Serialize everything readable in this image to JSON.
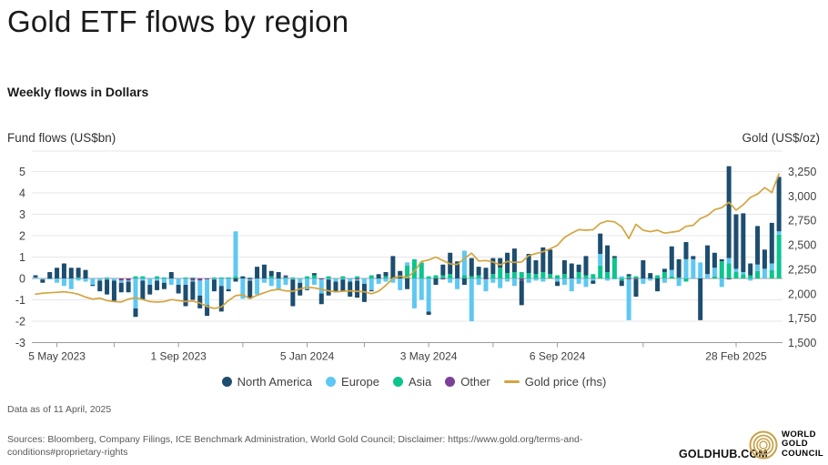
{
  "page": {
    "title": "Gold ETF flows by region",
    "subtitle": "Weekly flows in Dollars"
  },
  "chart_data": {
    "type": "bar+line",
    "left_axis": {
      "label": "Fund flows (US$bn)",
      "ticks": [
        "5",
        "4",
        "3",
        "2",
        "1",
        "0",
        "-1",
        "-2",
        "-3"
      ],
      "tick_values": [
        5,
        4,
        3,
        2,
        1,
        0,
        -1,
        -2,
        -3
      ],
      "range": [
        -3,
        5
      ],
      "grid": true
    },
    "right_axis": {
      "label": "Gold (US$/oz)",
      "ticks": [
        "3,250",
        "3,000",
        "2,750",
        "2,500",
        "2,250",
        "2,000",
        "1,750",
        "1,500"
      ],
      "tick_values": [
        3250,
        3000,
        2750,
        2500,
        2250,
        2000,
        1750,
        1500
      ],
      "range": [
        1500,
        3250
      ]
    },
    "x_axis": {
      "labels": [
        "5 May 2023",
        "1 Sep 2023",
        "5 Jan 2024",
        "3 May 2024",
        "6 Sep 2024",
        "28 Feb 2025"
      ],
      "label_indices": [
        3,
        20,
        38,
        55,
        73,
        98
      ],
      "minor_tick_indices": [
        3,
        11,
        20,
        29,
        38,
        46,
        55,
        64,
        73,
        85,
        98
      ]
    },
    "series_names": [
      "North America",
      "Europe",
      "Asia",
      "Other"
    ],
    "colors": {
      "north_america": "#1d4d6f",
      "europe": "#5ec8f2",
      "asia": "#0cc48e",
      "other": "#7d4098",
      "gold_line": "#d4a43f",
      "grid": "#e7e7e7",
      "axis": "#9b9b9b",
      "tick_text": "#404040"
    },
    "weeks_start": "mid-April 2023",
    "weeks_end": "11 April 2025",
    "weeks": [
      [
        0.1,
        0.05,
        0,
        0
      ],
      [
        -0.15,
        -0.05,
        0,
        0
      ],
      [
        0.3,
        -0.05,
        0,
        0
      ],
      [
        0.5,
        -0.2,
        0,
        0
      ],
      [
        0.7,
        -0.35,
        0,
        0
      ],
      [
        0.5,
        -0.5,
        0,
        0
      ],
      [
        0.45,
        -0.1,
        0.05,
        0
      ],
      [
        0.4,
        -0.15,
        0,
        0
      ],
      [
        -0.05,
        -0.3,
        0,
        0
      ],
      [
        -0.5,
        -0.1,
        0,
        0
      ],
      [
        -0.7,
        -0.05,
        0.05,
        0
      ],
      [
        -0.95,
        -0.1,
        0,
        0
      ],
      [
        -0.45,
        -0.1,
        0,
        -0.1
      ],
      [
        -0.5,
        -0.05,
        0,
        -0.1
      ],
      [
        -0.4,
        -1.4,
        0.1,
        0
      ],
      [
        -0.9,
        -0.1,
        0.1,
        0
      ],
      [
        -0.45,
        -0.3,
        0,
        0
      ],
      [
        -0.45,
        -0.1,
        0.1,
        0
      ],
      [
        -0.3,
        -0.2,
        0.05,
        0
      ],
      [
        0.3,
        -0.3,
        0,
        0
      ],
      [
        -0.4,
        -0.3,
        0,
        0
      ],
      [
        -1.0,
        -0.3,
        0.05,
        0
      ],
      [
        -0.85,
        -0.05,
        0.05,
        -0.1
      ],
      [
        -0.6,
        -0.7,
        0,
        -0.1
      ],
      [
        -0.5,
        -1.2,
        0,
        -0.05
      ],
      [
        -0.55,
        -0.05,
        0.05,
        0
      ],
      [
        -1.2,
        -0.35,
        0.05,
        0
      ],
      [
        -0.1,
        -0.5,
        0.05,
        0
      ],
      [
        -0.15,
        2.1,
        0.1,
        0
      ],
      [
        0.1,
        -0.95,
        0,
        0
      ],
      [
        -0.85,
        -0.05,
        0.05,
        -0.05
      ],
      [
        0.55,
        -0.75,
        0,
        0
      ],
      [
        0.65,
        -0.2,
        0,
        0
      ],
      [
        0.25,
        -0.35,
        0.1,
        0
      ],
      [
        0.3,
        -0.5,
        0,
        0
      ],
      [
        0.05,
        -0.3,
        0.05,
        0.05
      ],
      [
        -1.25,
        -0.05,
        0.05,
        0
      ],
      [
        -0.6,
        -0.2,
        0,
        0
      ],
      [
        -0.05,
        -0.5,
        0.1,
        0
      ],
      [
        0.1,
        -0.3,
        0.15,
        0
      ],
      [
        -0.5,
        -0.65,
        0,
        -0.05
      ],
      [
        -0.75,
        -0.05,
        0.1,
        0
      ],
      [
        -0.5,
        -0.15,
        0,
        0
      ],
      [
        -0.55,
        -0.05,
        0.1,
        0
      ],
      [
        -0.7,
        -0.15,
        0,
        0
      ],
      [
        -0.8,
        -0.05,
        0.1,
        -0.05
      ],
      [
        -0.85,
        -0.25,
        0,
        0
      ],
      [
        -0.05,
        -0.55,
        0.15,
        0
      ],
      [
        0.2,
        -0.25,
        0,
        0
      ],
      [
        0.2,
        -0.15,
        0.1,
        0
      ],
      [
        1.05,
        -0.2,
        0,
        0
      ],
      [
        0.35,
        -0.55,
        0,
        0
      ],
      [
        -0.5,
        0.15,
        0.6,
        0
      ],
      [
        0,
        -1.4,
        0.9,
        0
      ],
      [
        0,
        -1.0,
        0.75,
        0
      ],
      [
        -0.15,
        -1.55,
        0.1,
        0
      ],
      [
        -0.3,
        0,
        0.15,
        0
      ],
      [
        0.5,
        0,
        0.15,
        -0.05
      ],
      [
        1.0,
        -0.2,
        0.2,
        0
      ],
      [
        0.8,
        -0.5,
        0,
        0
      ],
      [
        -0.3,
        1.15,
        0.15,
        0
      ],
      [
        0.85,
        -2.0,
        0.1,
        0
      ],
      [
        0.4,
        -0.3,
        0.15,
        0
      ],
      [
        0.5,
        -0.55,
        0,
        -0.05
      ],
      [
        0.75,
        -0.2,
        0.2,
        0
      ],
      [
        0.45,
        -0.45,
        0.5,
        0
      ],
      [
        0.95,
        -0.15,
        0.25,
        0
      ],
      [
        1.1,
        -0.35,
        0.3,
        0
      ],
      [
        -1.15,
        0,
        0.3,
        -0.1
      ],
      [
        0.9,
        -0.2,
        0.25,
        0
      ],
      [
        0.65,
        -0.1,
        0.2,
        0
      ],
      [
        1.15,
        -0.15,
        0.3,
        0
      ],
      [
        1.15,
        0,
        0.2,
        0
      ],
      [
        -0.2,
        -0.15,
        0.15,
        0
      ],
      [
        0.65,
        -0.3,
        0.2,
        0
      ],
      [
        0.7,
        -0.6,
        0,
        0
      ],
      [
        0.35,
        -0.25,
        0.3,
        0
      ],
      [
        0.9,
        -0.4,
        0.15,
        0
      ],
      [
        -0.15,
        -0.1,
        0.2,
        0
      ],
      [
        0.95,
        0.55,
        0.6,
        0
      ],
      [
        1.25,
        -0.1,
        0.3,
        0
      ],
      [
        0.1,
        -0.05,
        0.95,
        0
      ],
      [
        -0.25,
        0.1,
        -0.1,
        0
      ],
      [
        0.1,
        -1.9,
        0.1,
        -0.05
      ],
      [
        -0.8,
        0,
        0.1,
        -0.05
      ],
      [
        0.85,
        -0.25,
        0,
        0
      ],
      [
        0.25,
        -0.1,
        0,
        0
      ],
      [
        -0.6,
        0,
        0.15,
        0
      ],
      [
        0.15,
        -0.2,
        0.3,
        0
      ],
      [
        1.1,
        0.3,
        0.1,
        0
      ],
      [
        0.85,
        -0.35,
        0.05,
        0
      ],
      [
        0.8,
        0.9,
        -0.15,
        0
      ],
      [
        0.15,
        0.9,
        0,
        0
      ],
      [
        -1.95,
        0.75,
        0,
        0
      ],
      [
        1.35,
        0.2,
        0,
        0
      ],
      [
        0.7,
        0.4,
        0.1,
        0
      ],
      [
        0.1,
        -0.4,
        0.8,
        0
      ],
      [
        4.3,
        0.25,
        0.7,
        -0.05
      ],
      [
        2.55,
        0.15,
        0.3,
        0
      ],
      [
        2.75,
        0.1,
        0.2,
        0
      ],
      [
        0.55,
        -0.1,
        0.15,
        0
      ],
      [
        1.8,
        0.3,
        0.35,
        0
      ],
      [
        0.9,
        0.45,
        0,
        0
      ],
      [
        1.9,
        0.3,
        0.4,
        0
      ],
      [
        2.55,
        0.15,
        2.05,
        0
      ]
    ],
    "gold": [
      1995,
      2005,
      2010,
      2015,
      2020,
      2010,
      1995,
      1965,
      1945,
      1955,
      1930,
      1920,
      1915,
      1945,
      1960,
      1940,
      1920,
      1915,
      1920,
      1940,
      1930,
      1920,
      1925,
      1905,
      1870,
      1850,
      1865,
      1930,
      1980,
      1990,
      1950,
      1985,
      2010,
      2035,
      2045,
      2030,
      2025,
      2050,
      2065,
      2060,
      2045,
      2030,
      2020,
      2025,
      2030,
      2025,
      2020,
      2000,
      2025,
      2085,
      2160,
      2180,
      2165,
      2230,
      2330,
      2345,
      2375,
      2340,
      2305,
      2300,
      2360,
      2415,
      2335,
      2340,
      2325,
      2295,
      2330,
      2320,
      2325,
      2390,
      2410,
      2430,
      2460,
      2495,
      2575,
      2620,
      2655,
      2650,
      2655,
      2720,
      2745,
      2735,
      2685,
      2565,
      2710,
      2650,
      2635,
      2650,
      2620,
      2630,
      2640,
      2690,
      2700,
      2770,
      2800,
      2860,
      2880,
      2935,
      2855,
      2910,
      2985,
      3020,
      3085,
      3035,
      3225
    ]
  },
  "legend": {
    "items": [
      {
        "label": "North America",
        "color": "#1d4d6f",
        "type": "dot"
      },
      {
        "label": "Europe",
        "color": "#5ec8f2",
        "type": "dot"
      },
      {
        "label": "Asia",
        "color": "#0cc48e",
        "type": "dot"
      },
      {
        "label": "Other",
        "color": "#7d4098",
        "type": "dot"
      },
      {
        "label": "Gold price (rhs)",
        "color": "#d4a43f",
        "type": "line"
      }
    ]
  },
  "footer": {
    "data_as_of": "Data as of 11 April, 2025",
    "sources": "Sources: Bloomberg, Company Filings, ICE Benchmark Administration, World Gold Council; Disclaimer: https://www.gold.org/terms-and-conditions#proprietary-rights"
  },
  "brand": {
    "goldhub": "GOLDHUB.COM",
    "wgc": [
      "WORLD",
      "GOLD",
      "COUNCIL"
    ],
    "logo_icon": "wgc-concentric-rings",
    "logo_color": "#c9a24b"
  }
}
